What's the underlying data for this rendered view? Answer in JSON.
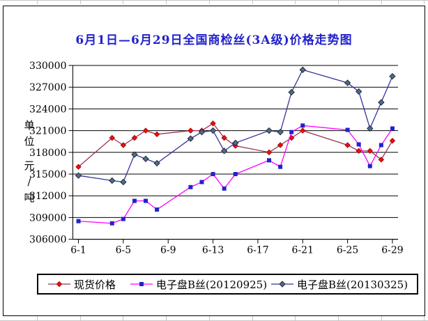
{
  "chart_data": {
    "type": "line",
    "title": "6月1日—6月29日全国商检丝(3A级)价格走势图",
    "title_color": "#2222cc",
    "ylabel": "单位 元/吨",
    "ylabel_stack": [
      "单",
      "位",
      "",
      "元",
      "/",
      "吨"
    ],
    "ylim": [
      306000,
      330000
    ],
    "ytick_step": 3000,
    "yticks": [
      330000,
      327000,
      324000,
      321000,
      318000,
      315000,
      312000,
      309000,
      306000
    ],
    "n_categories": 29,
    "xticks": [
      "6-1",
      "6-5",
      "6-9",
      "6-13",
      "6-17",
      "6-21",
      "6-25",
      "6-29"
    ],
    "xtick_day_numbers": [
      1,
      5,
      9,
      13,
      17,
      21,
      25,
      29
    ],
    "x": [
      "6-1",
      "6-4",
      "6-5",
      "6-6",
      "6-7",
      "6-8",
      "6-11",
      "6-12",
      "6-13",
      "6-14",
      "6-15",
      "6-18",
      "6-19",
      "6-20",
      "6-21",
      "6-25",
      "6-26",
      "6-27",
      "6-28",
      "6-29"
    ],
    "x_day_numbers": [
      1,
      4,
      5,
      6,
      7,
      8,
      11,
      12,
      13,
      14,
      15,
      18,
      19,
      20,
      21,
      25,
      26,
      27,
      28,
      29
    ],
    "grid": true,
    "gridline_color": "#000000",
    "axis_color": "#000000",
    "legend_position": "bottom",
    "series": [
      {
        "name": "现货价格",
        "line_color": "#993355",
        "marker": "diamond",
        "marker_fill": "#ee1111",
        "marker_stroke": "#aa0000",
        "marker_size": 7,
        "values": [
          316000,
          320000,
          319000,
          320000,
          321000,
          320500,
          321000,
          321000,
          322000,
          320000,
          318900,
          318000,
          319000,
          320000,
          321000,
          319000,
          318200,
          318200,
          317000,
          319600
        ]
      },
      {
        "name": "电子盘B丝(20120925)",
        "line_color": "#ff00ff",
        "marker": "square",
        "marker_fill": "#2222cc",
        "marker_stroke": "#2222cc",
        "marker_size": 6,
        "values": [
          308500,
          308200,
          308800,
          311300,
          311300,
          310100,
          313200,
          313900,
          315000,
          313000,
          315000,
          316900,
          316000,
          320800,
          321700,
          321100,
          319100,
          316100,
          319000,
          321300
        ]
      },
      {
        "name": "电子盘B丝(20130325)",
        "line_color": "#333399",
        "marker": "diamond",
        "marker_fill": "#4d7177",
        "marker_stroke": "#26264d",
        "marker_size": 8,
        "values": [
          314800,
          314100,
          313900,
          317700,
          317100,
          316500,
          319900,
          320800,
          321000,
          318200,
          319300,
          321000,
          320800,
          326300,
          329400,
          327600,
          326400,
          321300,
          324900,
          328500
        ]
      }
    ]
  }
}
